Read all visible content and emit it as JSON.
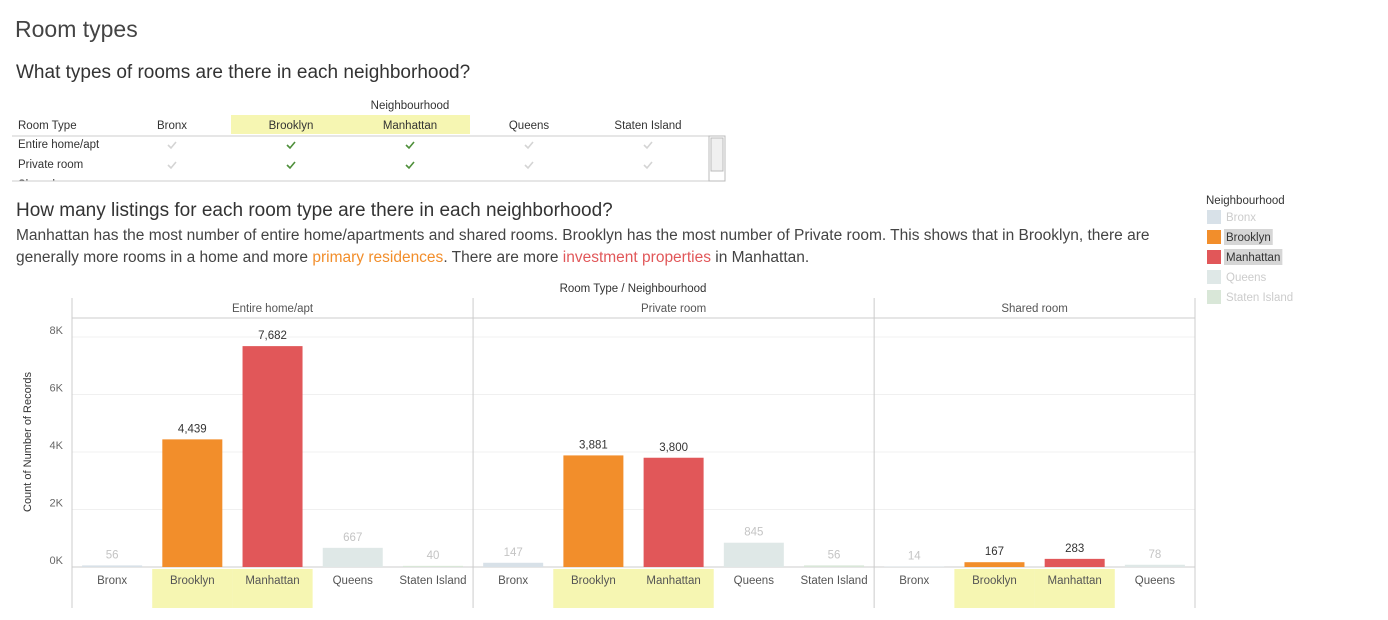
{
  "header": {
    "title": "Room types"
  },
  "table": {
    "title": "What types of rooms are there in each neighborhood?",
    "column_header": "Neighbourhood",
    "row_header": "Room Type",
    "columns": [
      "Bronx",
      "Brooklyn",
      "Manhattan",
      "Queens",
      "Staten Island"
    ],
    "highlighted": [
      false,
      true,
      true,
      false,
      false
    ],
    "rows": [
      "Entire home/apt",
      "Private room",
      "Shared room"
    ]
  },
  "chart_data": {
    "type": "bar",
    "title": "How many listings for each room type are there in each neighborhood?",
    "description": [
      "Manhattan has the most number of entire home/apartments and shared rooms. Brooklyn has the most number of Private room. This shows that in Brooklyn, there are generally more rooms in a home and more ",
      "primary residences",
      ". There are more ",
      "investment properties",
      " in Manhattan."
    ],
    "header_label": "Room Type / Neighbourhood",
    "y_label": "Count of Number of Records",
    "ylim": [
      0,
      8660
    ],
    "yticks": [
      {
        "value": 0,
        "label": "0K"
      },
      {
        "value": 2000,
        "label": "2K"
      },
      {
        "value": 4000,
        "label": "4K"
      },
      {
        "value": 6000,
        "label": "6K"
      },
      {
        "value": 8000,
        "label": "8K"
      }
    ],
    "grid": true,
    "panels": [
      {
        "name": "Entire home/apt",
        "categories": [
          "Bronx",
          "Brooklyn",
          "Manhattan",
          "Queens",
          "Staten Island"
        ],
        "values": [
          56,
          4439,
          7682,
          667,
          40
        ],
        "value_labels": [
          "56",
          "4,439",
          "7,682",
          "667",
          "40"
        ]
      },
      {
        "name": "Private room",
        "categories": [
          "Bronx",
          "Brooklyn",
          "Manhattan",
          "Queens",
          "Staten Island"
        ],
        "values": [
          147,
          3881,
          3800,
          845,
          56
        ],
        "value_labels": [
          "147",
          "3,881",
          "3,800",
          "845",
          "56"
        ]
      },
      {
        "name": "Shared room",
        "categories": [
          "Bronx",
          "Brooklyn",
          "Manhattan",
          "Queens"
        ],
        "values": [
          14,
          167,
          283,
          78
        ],
        "value_labels": [
          "14",
          "167",
          "283",
          "78"
        ]
      }
    ],
    "legend": {
      "title": "Neighbourhood",
      "items": [
        {
          "name": "Bronx",
          "color": "#d8e1e8",
          "highlighted": false
        },
        {
          "name": "Brooklyn",
          "color": "#f28e2b",
          "highlighted": true
        },
        {
          "name": "Manhattan",
          "color": "#e15759",
          "highlighted": true
        },
        {
          "name": "Queens",
          "color": "#dfe8e7",
          "highlighted": false
        },
        {
          "name": "Staten Island",
          "color": "#d9e7d8",
          "highlighted": false
        }
      ]
    }
  }
}
